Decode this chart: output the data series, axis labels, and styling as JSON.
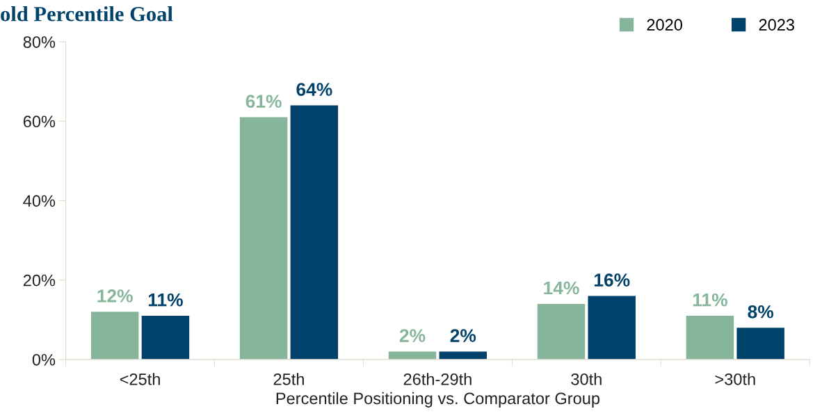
{
  "chart_data": {
    "type": "bar",
    "title": "old Percentile Goal",
    "xlabel": "Percentile Positioning vs. Comparator Group",
    "categories": [
      "<25th",
      "25th",
      "26th-29th",
      "30th",
      ">30th"
    ],
    "series": [
      {
        "name": "2020",
        "color": "#86b59b",
        "values": [
          12,
          61,
          2,
          14,
          11
        ],
        "value_labels": [
          "12%",
          "61%",
          "2%",
          "14%",
          "11%"
        ]
      },
      {
        "name": "2023",
        "color": "#00426a",
        "values": [
          11,
          64,
          2,
          16,
          8
        ],
        "value_labels": [
          "11%",
          "64%",
          "2%",
          "16%",
          "8%"
        ]
      }
    ],
    "ylim": [
      0,
      80
    ],
    "yticks": [
      {
        "value": 0,
        "label": "0%"
      },
      {
        "value": 20,
        "label": "20%"
      },
      {
        "value": 40,
        "label": "40%"
      },
      {
        "value": 60,
        "label": "60%"
      },
      {
        "value": 80,
        "label": "80%"
      }
    ],
    "legend": "top right",
    "grid": false
  }
}
